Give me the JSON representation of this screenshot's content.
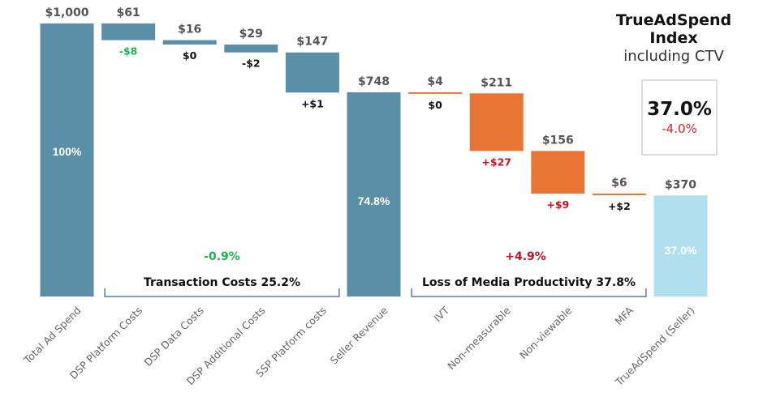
{
  "title": {
    "main": "TrueAdSpend Index",
    "sub": "including CTV"
  },
  "index_box": {
    "value": "37.0%",
    "change": "-4.0%",
    "change_color": "#d9262c"
  },
  "colors": {
    "steel_blue": "#5b8fa8",
    "orange": "#ea7433",
    "light_blue": "#b0dfee",
    "green": "#21b24b",
    "red": "#c8101e",
    "black": "#111111",
    "bracket": "#5a7fa0"
  },
  "chart_data": {
    "type": "waterfall",
    "title": "TrueAdSpend Index",
    "subtitle": "including CTV",
    "ylim": [
      0,
      1000
    ],
    "categories": [
      "Total Ad Spend",
      "DSP Platform Costs",
      "DSP Data Costs",
      "DSP Additional Costs",
      "SSP Platform costs",
      "Seller Revenue",
      "IVT",
      "Non-measurable",
      "Non-viewable",
      "MFA",
      "TrueAdSpend (Seller)"
    ],
    "bars": [
      {
        "category": "Total Ad Spend",
        "kind": "total",
        "start": 0,
        "end": 1000,
        "value_label": "$1,000",
        "inner_label": "100%",
        "color": "steel_blue"
      },
      {
        "category": "DSP Platform Costs",
        "kind": "step",
        "start": 1000,
        "end": 939,
        "value_label": "$61",
        "delta_label": "-$8",
        "delta_color": "green",
        "color": "steel_blue"
      },
      {
        "category": "DSP Data Costs",
        "kind": "step",
        "start": 939,
        "end": 923,
        "value_label": "$16",
        "delta_label": "$0",
        "delta_color": "black",
        "color": "steel_blue"
      },
      {
        "category": "DSP Additional Costs",
        "kind": "step",
        "start": 923,
        "end": 894,
        "value_label": "$29",
        "delta_label": "-$2",
        "delta_color": "black",
        "color": "steel_blue"
      },
      {
        "category": "SSP Platform costs",
        "kind": "step",
        "start": 894,
        "end": 747,
        "value_label": "$147",
        "delta_label": "+$1",
        "delta_color": "black",
        "color": "steel_blue"
      },
      {
        "category": "Seller Revenue",
        "kind": "total",
        "start": 0,
        "end": 748,
        "value_label": "$748",
        "inner_label": "74.8%",
        "color": "steel_blue"
      },
      {
        "category": "IVT",
        "kind": "step",
        "start": 748,
        "end": 744,
        "value_label": "$4",
        "delta_label": "$0",
        "delta_color": "black",
        "color": "orange"
      },
      {
        "category": "Non-measurable",
        "kind": "step",
        "start": 744,
        "end": 533,
        "value_label": "$211",
        "delta_label": "+$27",
        "delta_color": "red",
        "color": "orange"
      },
      {
        "category": "Non-viewable",
        "kind": "step",
        "start": 533,
        "end": 377,
        "value_label": "$156",
        "delta_label": "+$9",
        "delta_color": "red",
        "color": "orange"
      },
      {
        "category": "MFA",
        "kind": "step",
        "start": 377,
        "end": 371,
        "value_label": "$6",
        "delta_label": "+$2",
        "delta_color": "black",
        "color": "orange"
      },
      {
        "category": "TrueAdSpend (Seller)",
        "kind": "total",
        "start": 0,
        "end": 370,
        "value_label": "$370",
        "inner_label": "37.0%",
        "color": "light_blue"
      }
    ],
    "groups": [
      {
        "label": "Transaction Costs 25.2%",
        "delta": "-0.9%",
        "delta_color": "green",
        "from_index": 1,
        "to_index": 4
      },
      {
        "label": "Loss of Media Productivity 37.8%",
        "delta": "+4.9%",
        "delta_color": "red",
        "from_index": 6,
        "to_index": 9
      }
    ],
    "xlabel": "",
    "ylabel": "",
    "grid": false,
    "legend": "none"
  }
}
